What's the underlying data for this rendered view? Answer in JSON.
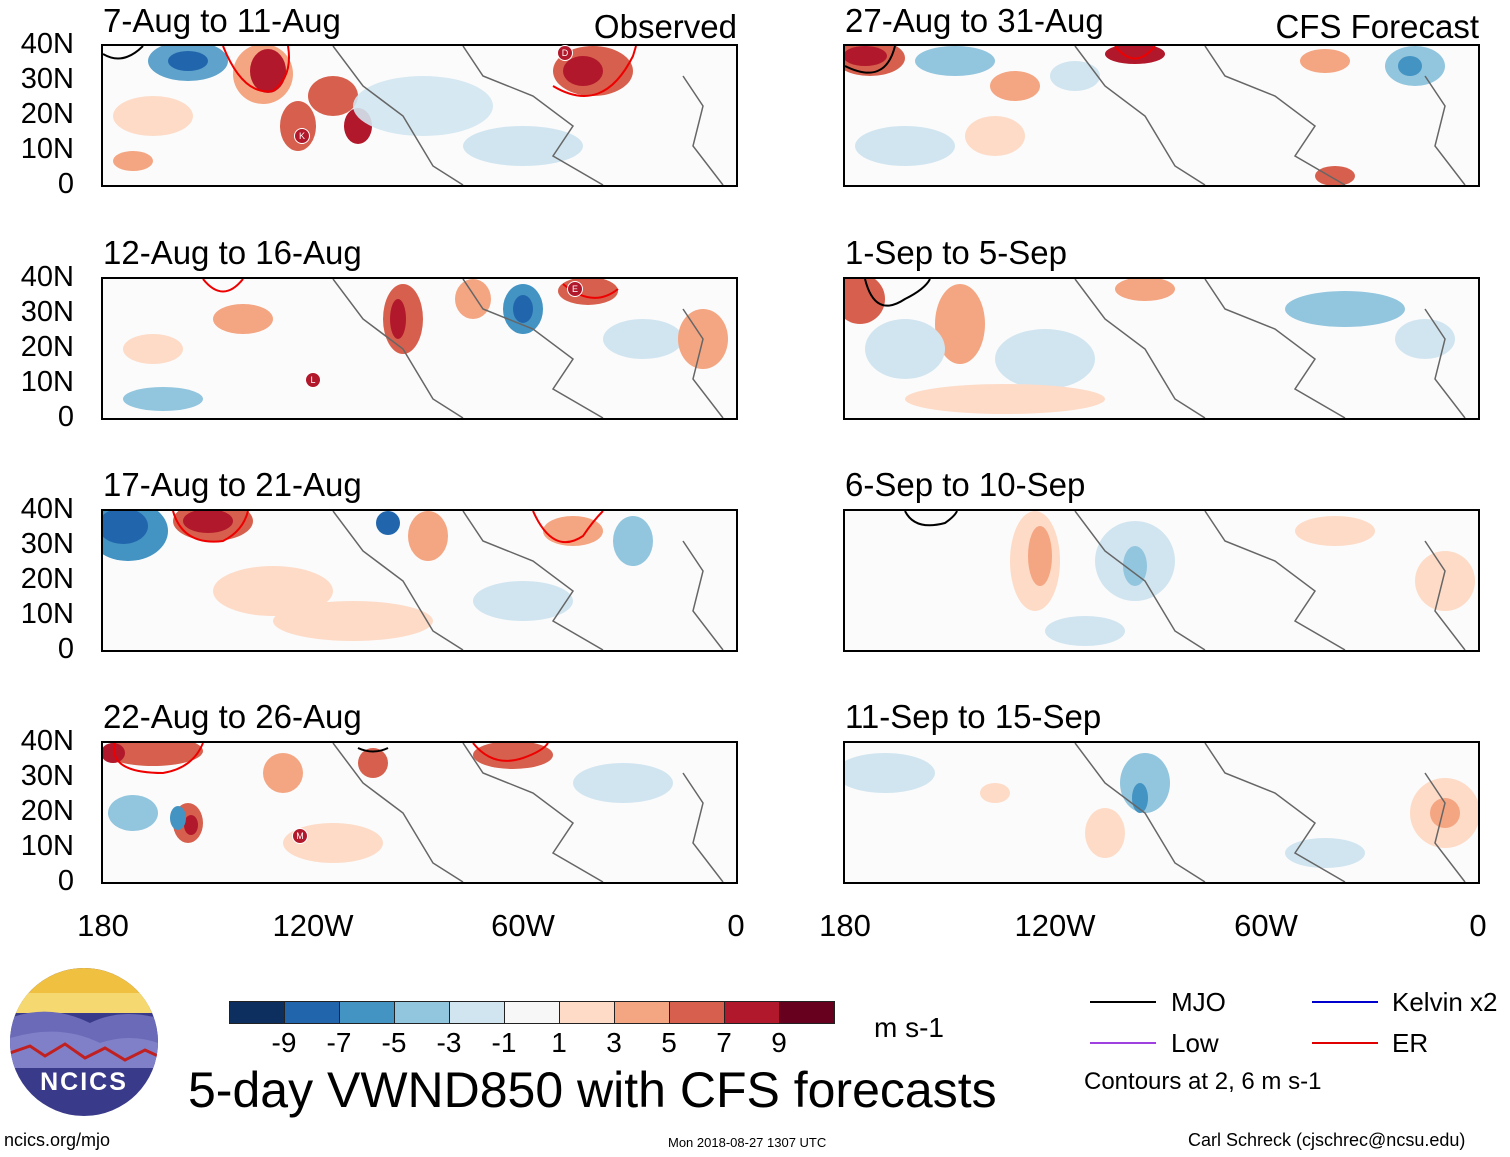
{
  "logo": {
    "text": "NCICS"
  },
  "panels": {
    "left": [
      {
        "title": "7-Aug to 11-Aug",
        "tag": "Observed"
      },
      {
        "title": "12-Aug to 16-Aug",
        "tag": ""
      },
      {
        "title": "17-Aug to 21-Aug",
        "tag": ""
      },
      {
        "title": "22-Aug to 26-Aug",
        "tag": ""
      }
    ],
    "right": [
      {
        "title": "27-Aug to 31-Aug",
        "tag": "CFS Forecast"
      },
      {
        "title": "1-Sep to 5-Sep",
        "tag": ""
      },
      {
        "title": "6-Sep to 10-Sep",
        "tag": ""
      },
      {
        "title": "11-Sep to 15-Sep",
        "tag": ""
      }
    ]
  },
  "lat_labels": [
    "40N",
    "30N",
    "20N",
    "10N",
    "0"
  ],
  "lon_labels": [
    "180",
    "120W",
    "60W",
    "0"
  ],
  "storm_markers": [
    {
      "panel": "left-0",
      "letter": "D"
    },
    {
      "panel": "left-0",
      "letter": "K"
    },
    {
      "panel": "left-1",
      "letter": "E"
    },
    {
      "panel": "left-1",
      "letter": "L"
    },
    {
      "panel": "left-3",
      "letter": "M"
    }
  ],
  "colorbar": {
    "colors": [
      "#0d2f5f",
      "#2166ac",
      "#4393c3",
      "#92c5de",
      "#d1e5f0",
      "#f7f7f7",
      "#fddbc7",
      "#f4a582",
      "#d6604d",
      "#b2182b",
      "#67001f"
    ],
    "ticks": [
      "-9",
      "-7",
      "-5",
      "-3",
      "-1",
      "1",
      "3",
      "5",
      "7",
      "9"
    ],
    "units": "m s-1"
  },
  "title": "5-day VWND850 with CFS forecasts",
  "legend": {
    "items": [
      {
        "label": "MJO",
        "color": "#000000"
      },
      {
        "label": "Kelvin x2",
        "color": "#0000cc"
      },
      {
        "label": "Low",
        "color": "#a040e0"
      },
      {
        "label": "ER",
        "color": "#e00000"
      }
    ],
    "note": "Contours at 2, 6 m s-1"
  },
  "footer": {
    "url": "ncics.org/mjo",
    "timestamp": "Mon 2018-08-27 1307 UTC",
    "author": "Carl Schreck (cjschrec@ncsu.edu)"
  }
}
